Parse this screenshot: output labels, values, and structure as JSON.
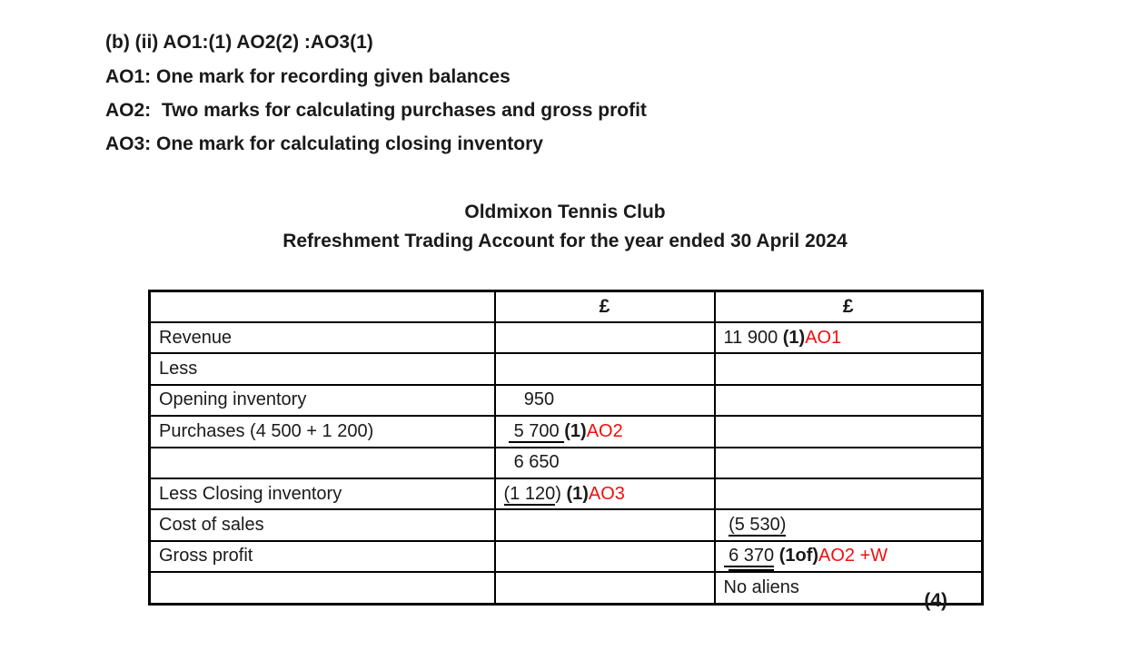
{
  "page": {
    "heading": "(b) (ii) AO1:(1) AO2(2) :AO3(1)",
    "ao_notes": [
      "AO1: One mark for recording given balances",
      "AO2:  Two marks for calculating purchases and gross profit",
      "AO3: One mark for calculating closing inventory"
    ],
    "title": "Oldmixon Tennis Club",
    "subtitle": "Refreshment Trading Account for the year ended 30 April 2024",
    "marks_label": "(4)"
  },
  "colors": {
    "mark_red": "#f10e0e",
    "text": "#1a1a1a",
    "border": "#000000"
  },
  "table": {
    "columns": [
      "",
      "£",
      "£"
    ],
    "rows": [
      {
        "label": "Revenue",
        "c2": [],
        "c3": [
          {
            "t": "11 900 "
          },
          {
            "t": "(1)",
            "b": true
          },
          {
            "t": "AO1",
            "r": true
          }
        ]
      },
      {
        "label": "Less",
        "c2": [],
        "c3": []
      },
      {
        "label": "Opening inventory",
        "c2": [
          {
            "t": "    950"
          }
        ],
        "c3": []
      },
      {
        "label": "Purchases (4 500 + 1 200)",
        "c2": [
          {
            "t": " "
          },
          {
            "t": " 5 700 ",
            "u": "s"
          },
          {
            "t": "(1)",
            "b": true
          },
          {
            "t": "AO2",
            "r": true
          }
        ],
        "c3": []
      },
      {
        "label": "",
        "c2": [
          {
            "t": "  6 650"
          }
        ],
        "c3": []
      },
      {
        "label": "Less Closing inventory",
        "c2": [
          {
            "t": "(1 120",
            "u": "s"
          },
          {
            "t": ") "
          },
          {
            "t": "(1)",
            "b": true
          },
          {
            "t": "AO3",
            "r": true
          }
        ],
        "c3": []
      },
      {
        "label": "Cost of sales",
        "c2": [],
        "c3": [
          {
            "t": " "
          },
          {
            "t": "(5 530)",
            "u": "s"
          }
        ]
      },
      {
        "label": "Gross profit",
        "c2": [],
        "c3": [
          {
            "t": " ",
            "u": "s"
          },
          {
            "t": "6 370",
            "u": "d"
          },
          {
            "t": " "
          },
          {
            "t": "(1of)",
            "b": true
          },
          {
            "t": "AO2 +W",
            "r": true
          }
        ]
      },
      {
        "label": "",
        "c2": [],
        "c3": [
          {
            "t": "No aliens"
          }
        ]
      }
    ]
  }
}
